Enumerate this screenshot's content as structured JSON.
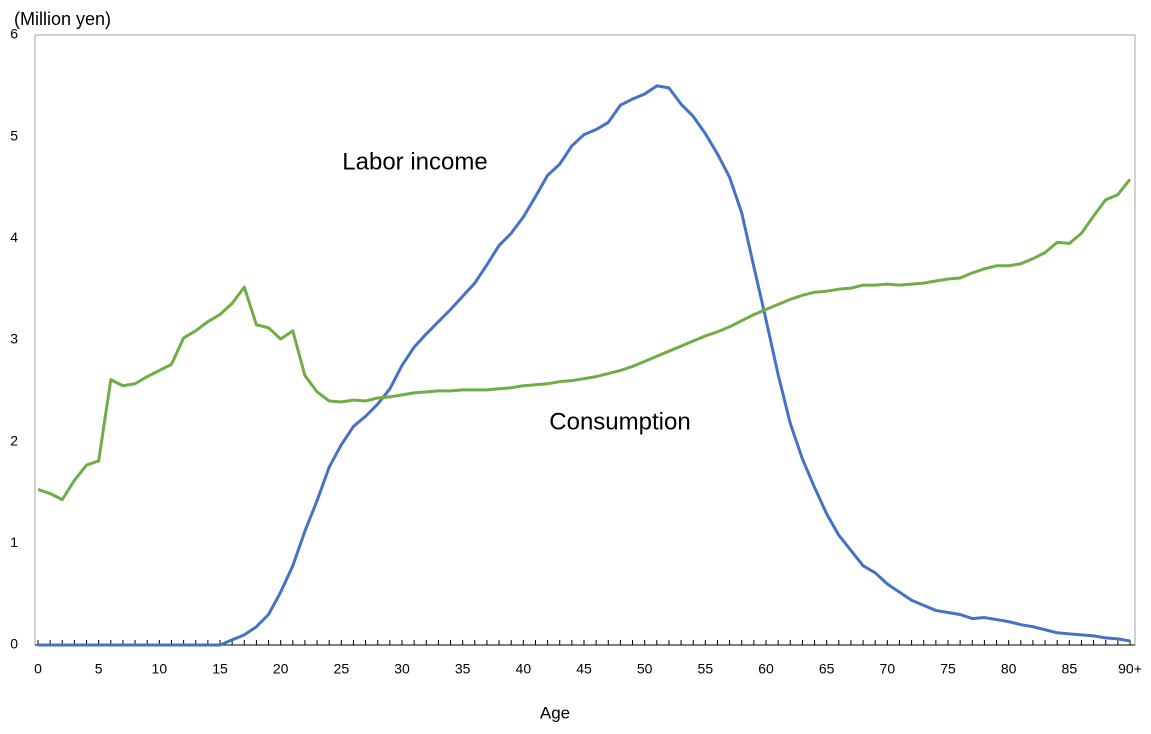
{
  "chart_data": {
    "type": "line",
    "y_axis_label": "(Million yen)",
    "x_axis_label": "Age",
    "categories": [
      "0",
      null,
      null,
      null,
      null,
      "5",
      null,
      null,
      null,
      null,
      "10",
      null,
      null,
      null,
      null,
      "15",
      null,
      null,
      null,
      null,
      "20",
      null,
      null,
      null,
      null,
      "25",
      null,
      null,
      null,
      null,
      "30",
      null,
      null,
      null,
      null,
      "35",
      null,
      null,
      null,
      null,
      "40",
      null,
      null,
      null,
      null,
      "45",
      null,
      null,
      null,
      null,
      "50",
      null,
      null,
      null,
      null,
      "55",
      null,
      null,
      null,
      null,
      "60",
      null,
      null,
      null,
      null,
      "65",
      null,
      null,
      null,
      null,
      "70",
      null,
      null,
      null,
      null,
      "75",
      null,
      null,
      null,
      null,
      "80",
      null,
      null,
      null,
      null,
      "85",
      null,
      null,
      null,
      null,
      "90+"
    ],
    "series": [
      {
        "name": "Labor income",
        "color": "#4472c4",
        "values": [
          0,
          0,
          0,
          0,
          0,
          0,
          0,
          0,
          0,
          0,
          0,
          0,
          0,
          0,
          0,
          0,
          0.05,
          0.1,
          0.18,
          0.3,
          0.52,
          0.78,
          1.12,
          1.42,
          1.75,
          1.97,
          2.15,
          2.25,
          2.37,
          2.52,
          2.75,
          2.93,
          3.06,
          3.18,
          3.3,
          3.43,
          3.56,
          3.74,
          3.93,
          4.05,
          4.21,
          4.41,
          4.62,
          4.73,
          4.91,
          5.02,
          5.07,
          5.14,
          5.31,
          5.37,
          5.42,
          5.5,
          5.48,
          5.32,
          5.2,
          5.03,
          4.83,
          4.6,
          4.25,
          3.72,
          3.2,
          2.66,
          2.18,
          1.83,
          1.55,
          1.29,
          1.08,
          0.93,
          0.78,
          0.71,
          0.6,
          0.52,
          0.44,
          0.39,
          0.34,
          0.32,
          0.3,
          0.26,
          0.27,
          0.25,
          0.23,
          0.2,
          0.18,
          0.15,
          0.12,
          0.11,
          0.1,
          0.09,
          0.07,
          0.06,
          0.04
        ]
      },
      {
        "name": "Consumption",
        "color": "#70ad47",
        "values": [
          1.53,
          1.49,
          1.43,
          1.62,
          1.77,
          1.81,
          2.61,
          2.55,
          2.57,
          2.64,
          2.7,
          2.76,
          3.02,
          3.09,
          3.18,
          3.25,
          3.36,
          3.52,
          3.15,
          3.12,
          3.01,
          3.09,
          2.65,
          2.49,
          2.4,
          2.39,
          2.41,
          2.4,
          2.43,
          2.44,
          2.46,
          2.48,
          2.49,
          2.5,
          2.5,
          2.51,
          2.51,
          2.51,
          2.52,
          2.53,
          2.55,
          2.56,
          2.57,
          2.59,
          2.6,
          2.62,
          2.64,
          2.67,
          2.7,
          2.74,
          2.79,
          2.84,
          2.89,
          2.94,
          2.99,
          3.04,
          3.08,
          3.13,
          3.19,
          3.25,
          3.3,
          3.35,
          3.4,
          3.44,
          3.47,
          3.48,
          3.5,
          3.51,
          3.54,
          3.54,
          3.55,
          3.54,
          3.55,
          3.56,
          3.58,
          3.6,
          3.61,
          3.66,
          3.7,
          3.73,
          3.73,
          3.75,
          3.8,
          3.86,
          3.96,
          3.95,
          4.05,
          4.22,
          4.38,
          4.43,
          4.58
        ]
      }
    ],
    "ylim": [
      0,
      6
    ],
    "yticks": [
      0,
      1,
      2,
      3,
      4,
      5,
      6
    ],
    "grid": false
  }
}
